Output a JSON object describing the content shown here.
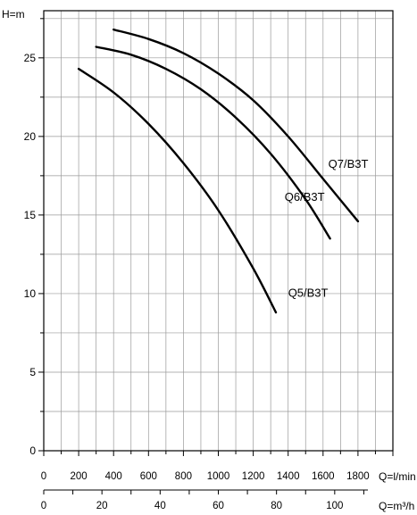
{
  "chart_data": {
    "type": "line",
    "y_axis": {
      "label": "H=m",
      "ylim": [
        0,
        28
      ],
      "ticks": [
        0,
        5,
        10,
        15,
        20,
        25
      ],
      "tick_labels": [
        "0",
        "5",
        "10",
        "15",
        "20",
        "25"
      ],
      "minor_step": 2.5
    },
    "x_axis_primary": {
      "label": "Q=l/min",
      "xlim": [
        0,
        2000
      ],
      "ticks": [
        0,
        200,
        400,
        600,
        800,
        1000,
        1200,
        1400,
        1600,
        1800
      ],
      "tick_labels": [
        "0",
        "200",
        "400",
        "600",
        "800",
        "1000",
        "1200",
        "1400",
        "1600",
        "1800"
      ],
      "minor_step": 100
    },
    "x_axis_secondary": {
      "label": "Q=m³/h",
      "range": [
        0,
        120
      ],
      "ticks": [
        0,
        20,
        40,
        60,
        80,
        100
      ],
      "tick_labels": [
        "0",
        "20",
        "40",
        "60",
        "80",
        "100"
      ],
      "minor_step": 10
    },
    "grid": true,
    "series": [
      {
        "name": "Q5/B3T",
        "label_anchor": [
          1400,
          9.8
        ],
        "points": [
          [
            200,
            24.3
          ],
          [
            400,
            22.8
          ],
          [
            600,
            20.8
          ],
          [
            800,
            18.3
          ],
          [
            1000,
            15.3
          ],
          [
            1200,
            11.6
          ],
          [
            1330,
            8.8
          ]
        ]
      },
      {
        "name": "Q6/B3T",
        "label_anchor": [
          1380,
          15.9
        ],
        "points": [
          [
            300,
            25.7
          ],
          [
            500,
            25.2
          ],
          [
            700,
            24.3
          ],
          [
            900,
            23.0
          ],
          [
            1100,
            21.2
          ],
          [
            1300,
            18.9
          ],
          [
            1500,
            16.0
          ],
          [
            1640,
            13.5
          ]
        ]
      },
      {
        "name": "Q7/B3T",
        "label_anchor": [
          1630,
          18.0
        ],
        "points": [
          [
            400,
            26.8
          ],
          [
            600,
            26.2
          ],
          [
            800,
            25.3
          ],
          [
            1000,
            24.0
          ],
          [
            1200,
            22.3
          ],
          [
            1400,
            20.0
          ],
          [
            1600,
            17.3
          ],
          [
            1800,
            14.6
          ]
        ]
      }
    ]
  }
}
